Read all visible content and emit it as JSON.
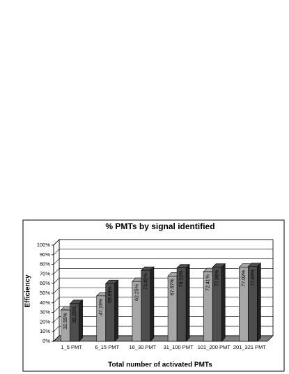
{
  "chart_data": {
    "type": "bar3d",
    "title": "% PMTs by signal identified",
    "y_label": "Efficiency",
    "x_label": "Total number of activated PMTs",
    "categories": [
      "1_5 PMT",
      "6_15 PMT",
      "16_30 PMT",
      "31_100 PMT",
      "101_200 PMT",
      "201_321 PMT"
    ],
    "series": [
      {
        "color": "#a6a6a6",
        "values": [
          32.55,
          47.19,
          62.25,
          67.87,
          72.41,
          77.02
        ],
        "value_labels": [
          "32.55%",
          "47.19%",
          "62.25%",
          "67.87%",
          "72.41%",
          "77.02%"
        ]
      },
      {
        "color": "#4d4d4d",
        "values": [
          39.25,
          59.99,
          73.82,
          76.32,
          77.06,
          77.69
        ],
        "value_labels": [
          "39.25%",
          "59.99%",
          "73.82%",
          "76.32%",
          "77.06%",
          "77.69%"
        ]
      }
    ],
    "ylim": [
      0,
      100
    ],
    "yticks": [
      {
        "value": 0,
        "label": "0%"
      },
      {
        "value": 10,
        "label": "10%"
      },
      {
        "value": 20,
        "label": "20%"
      },
      {
        "value": 30,
        "label": "30%"
      },
      {
        "value": 40,
        "label": "40%"
      },
      {
        "value": 50,
        "label": "50%"
      },
      {
        "value": 60,
        "label": "60%"
      },
      {
        "value": 70,
        "label": "70%"
      },
      {
        "value": 80,
        "label": "80%"
      },
      {
        "value": 90,
        "label": "90%"
      },
      {
        "value": 100,
        "label": "100%"
      }
    ],
    "grid": true
  }
}
